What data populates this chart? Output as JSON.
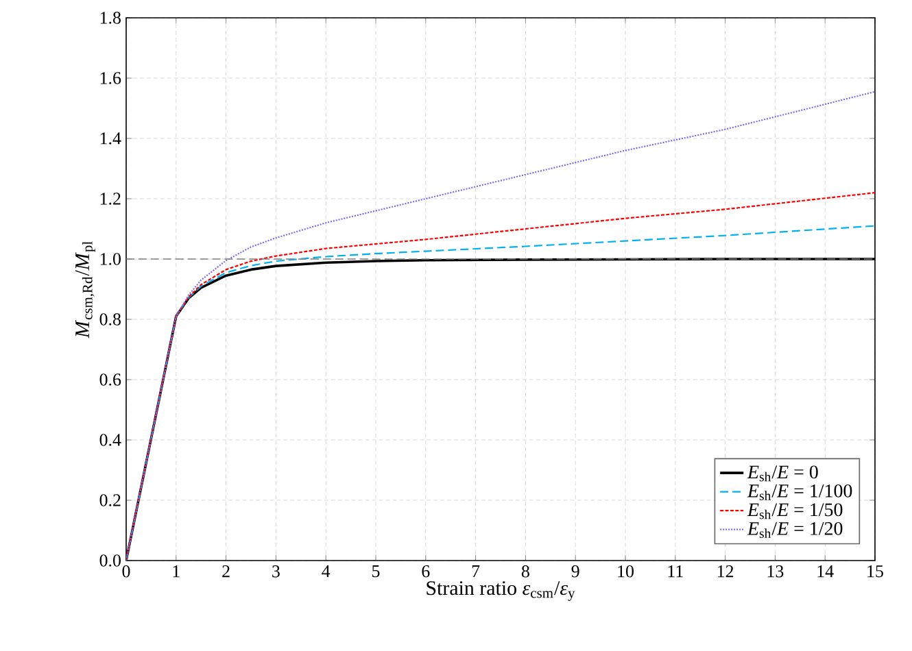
{
  "chart_data": {
    "type": "line",
    "xlabel": "Strain ratio *ε*$_{csm}$/*ε*$_{y}$",
    "ylabel": "*M*$_{csm,Rd}$/*M*$_{pl}$",
    "x": [
      0,
      1,
      1.25,
      1.5,
      2,
      2.5,
      3,
      4,
      5,
      6,
      8,
      10,
      12,
      15
    ],
    "series": [
      {
        "name": "*E*$_{sh}$/*E* = 0",
        "color": "#000000",
        "line_style": "solid",
        "values": [
          0,
          0.81,
          0.87,
          0.905,
          0.945,
          0.965,
          0.977,
          0.988,
          0.993,
          0.996,
          0.998,
          0.999,
          1.0,
          1.0
        ]
      },
      {
        "name": "*E*$_{sh}$/*E* = 1/100",
        "color": "#00b0f0",
        "line_style": "dashed",
        "values": [
          0,
          0.81,
          0.872,
          0.91,
          0.955,
          0.978,
          0.993,
          1.008,
          1.018,
          1.026,
          1.042,
          1.06,
          1.078,
          1.11
        ]
      },
      {
        "name": "*E*$_{sh}$/*E* = 1/50",
        "color": "#ff0000",
        "line_style": "dashed",
        "values": [
          0,
          0.81,
          0.874,
          0.915,
          0.965,
          0.993,
          1.01,
          1.035,
          1.05,
          1.065,
          1.1,
          1.135,
          1.165,
          1.22
        ]
      },
      {
        "name": "*E*$_{sh}$/*E* = 1/20",
        "color": "#7b68ee",
        "line_style": "dotted",
        "values": [
          0,
          0.81,
          0.88,
          0.93,
          0.995,
          1.04,
          1.07,
          1.12,
          1.16,
          1.2,
          1.28,
          1.36,
          1.43,
          1.555
        ]
      }
    ],
    "ref_lines": [
      {
        "axis": "y",
        "value": 1,
        "color": "#808080",
        "line_style": "dashed"
      }
    ],
    "xlim": [
      0,
      15
    ],
    "xticks": [
      0,
      1,
      2,
      3,
      4,
      5,
      6,
      7,
      8,
      9,
      10,
      11,
      12,
      13,
      14,
      15
    ],
    "ylim": [
      0,
      1.8
    ],
    "yticks": [
      {
        "value": 0,
        "label": "0.0"
      },
      {
        "value": 0.2,
        "label": "0.2"
      },
      {
        "value": 0.4,
        "label": "0.4"
      },
      {
        "value": 0.6,
        "label": "0.6"
      },
      {
        "value": 0.8,
        "label": "0.8"
      },
      {
        "value": 1.0,
        "label": "1.0"
      },
      {
        "value": 1.2,
        "label": "1.2"
      },
      {
        "value": 1.4,
        "label": "1.4"
      },
      {
        "value": 1.6,
        "label": "1.6"
      },
      {
        "value": 1.8,
        "label": "1.8"
      }
    ],
    "grid": true,
    "legend": "bottom right"
  }
}
